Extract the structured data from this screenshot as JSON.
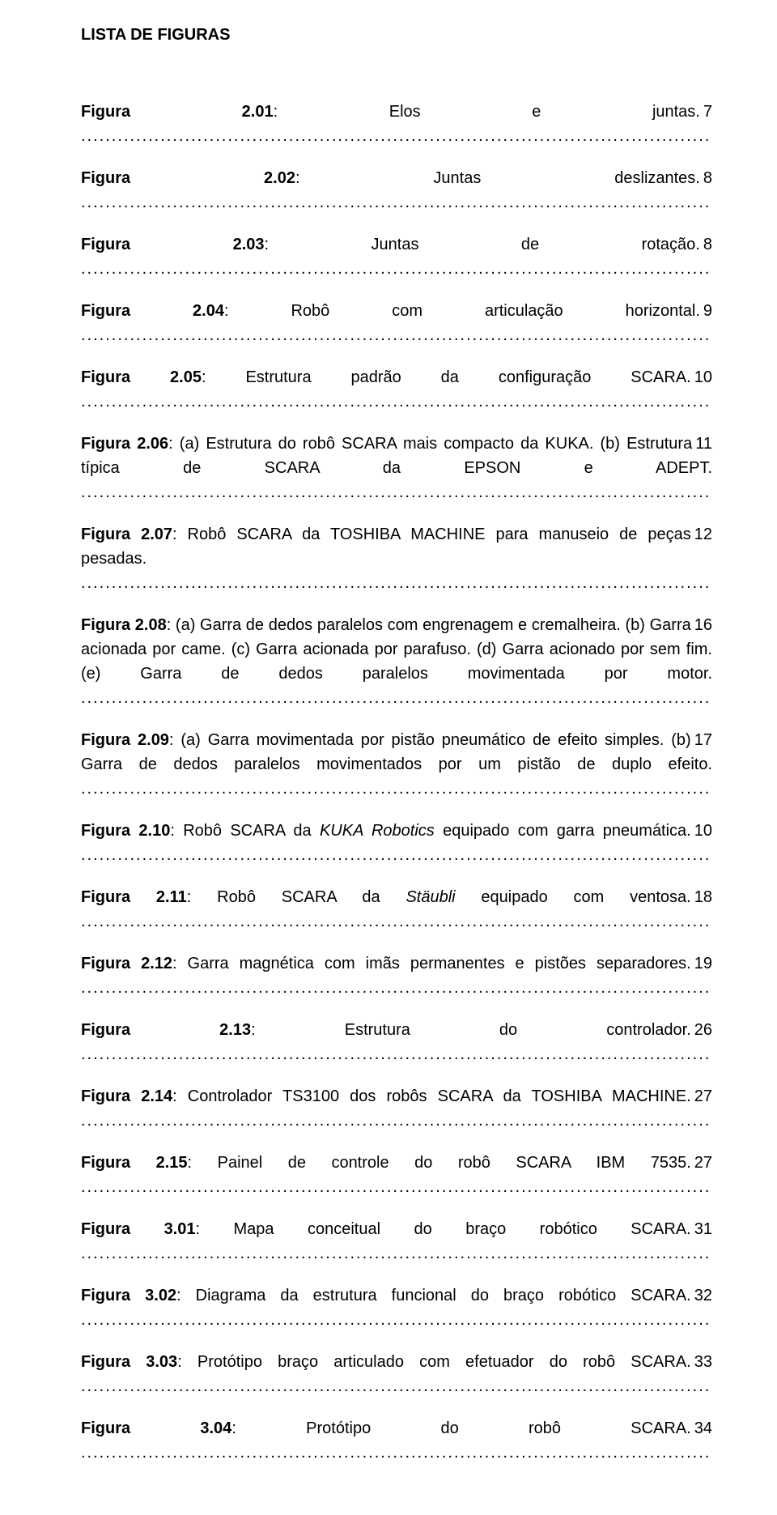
{
  "heading": "LISTA DE FIGURAS",
  "entries": [
    {
      "label": "Figura 2.01",
      "desc": "Elos e juntas.",
      "page": "7"
    },
    {
      "label": "Figura 2.02",
      "desc": "Juntas deslizantes.",
      "page": "8"
    },
    {
      "label": "Figura 2.03",
      "desc": "Juntas de rotação.",
      "page": "8"
    },
    {
      "label": "Figura 2.04",
      "desc": "Robô com articulação horizontal.",
      "page": "9"
    },
    {
      "label": "Figura 2.05",
      "desc": "Estrutura padrão da configuração SCARA.",
      "page": "10"
    },
    {
      "label": "Figura 2.06",
      "desc": "(a) Estrutura do robô SCARA mais compacto da KUKA. (b) Estrutura típica de SCARA da EPSON e ADEPT.",
      "page": "11"
    },
    {
      "label": "Figura 2.07",
      "desc": "Robô SCARA da TOSHIBA MACHINE para manuseio de peças pesadas.",
      "page": "12"
    },
    {
      "label": "Figura 2.08",
      "desc": "(a) Garra de dedos paralelos com engrenagem e cremalheira. (b) Garra acionada por came. (c) Garra acionada por parafuso. (d) Garra acionado por sem fim. (e) Garra de dedos paralelos movimentada por motor.",
      "page": "16"
    },
    {
      "label": "Figura 2.09",
      "desc": "(a) Garra movimentada por pistão pneumático de efeito simples. (b) Garra de dedos paralelos movimentados por um pistão de duplo efeito.",
      "page": "17"
    },
    {
      "label": "Figura 2.10",
      "desc": "Robô SCARA da KUKA Robotics equipado com garra pneumática.",
      "italics": [
        "KUKA Robotics"
      ],
      "page": "10"
    },
    {
      "label": "Figura 2.11",
      "desc": "Robô SCARA da Stäubli equipado com ventosa.",
      "italics": [
        "Stäubli"
      ],
      "page": "18"
    },
    {
      "label": "Figura 2.12",
      "desc": "Garra magnética com imãs permanentes e pistões separadores.",
      "page": "19"
    },
    {
      "label": "Figura 2.13",
      "desc": "Estrutura do controlador.",
      "page": "26"
    },
    {
      "label": "Figura 2.14",
      "desc": "Controlador TS3100 dos robôs SCARA da TOSHIBA MACHINE.",
      "page": "27"
    },
    {
      "label": "Figura 2.15",
      "desc": "Painel de controle do robô SCARA IBM 7535.",
      "page": "27"
    },
    {
      "label": "Figura 3.01",
      "desc": "Mapa conceitual do braço robótico SCARA.",
      "page": "31"
    },
    {
      "label": "Figura 3.02",
      "desc": "Diagrama da estrutura funcional do braço robótico SCARA.",
      "page": "32"
    },
    {
      "label": "Figura 3.03",
      "desc": "Protótipo braço articulado com efetuador do robô SCARA.",
      "page": "33"
    },
    {
      "label": "Figura 3.04",
      "desc": "Protótipo do robô SCARA.",
      "page": "34"
    }
  ]
}
